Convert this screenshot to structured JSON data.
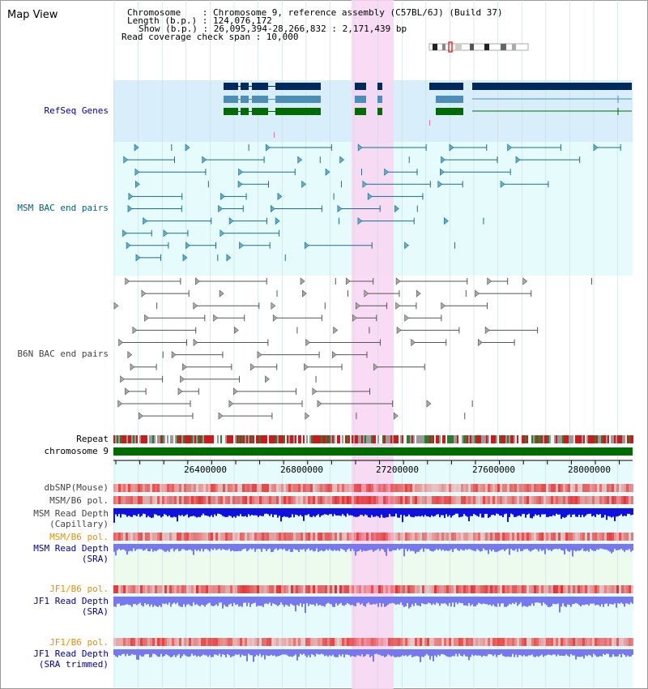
{
  "view_title": "Map View",
  "info": {
    "chromosome": "Chromosome    : Chromosome 9, reference assembly (C57BL/6J) (Build 37)",
    "length": "Length (b.p.) : 124,076,172",
    "show": "Show (b.p.) : 26,095,394-28,266,832 : 2,171,439 bp",
    "coverage": "Read coverage check span : 10,000"
  },
  "tracks": {
    "refseq": "RefSeq Genes",
    "msm_bac": "MSM BAC end pairs",
    "b6n_bac": "B6N BAC end pairs",
    "repeat": "Repeat",
    "chrom": "chromosome 9",
    "dbsnp": "dbSNP(Mouse)",
    "msm_pol": "MSM/B6 pol.",
    "msm_depth_cap_1": "MSM Read Depth",
    "msm_depth_cap_2": "(Capillary)",
    "msm_pol_sra": "MSM/B6 pol.",
    "msm_depth_sra_1": "MSM Read Depth",
    "msm_depth_sra_2": "(SRA)",
    "jf1_pol_1": "JF1/B6 pol.",
    "jf1_depth_1": "JF1 Read Depth",
    "jf1_depth_1b": "(SRA)",
    "jf1_pol_2": "JF1/B6 pol.",
    "jf1_depth_2": "JF1 Read Depth",
    "jf1_depth_2b": "(SRA trimmed)"
  },
  "axis_ticks": [
    "26400000",
    "26800000",
    "27200000",
    "27600000",
    "28000000"
  ],
  "colors": {
    "refseq_bg": "#d8eefa",
    "bac_bg": "#e6fcfc",
    "highlight": "#f9d5f3",
    "navy": "#002a5c",
    "steel": "#4b8fb8",
    "green": "#006b00",
    "teal": "#1b6c8c"
  }
}
